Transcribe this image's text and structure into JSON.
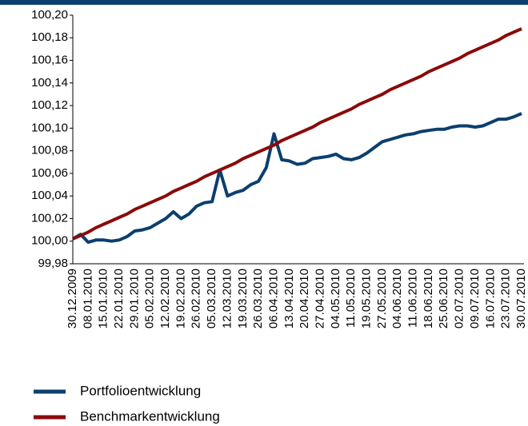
{
  "chart_data": {
    "type": "line",
    "categories": [
      "30.12.2009",
      null,
      "08.01.2010",
      null,
      "15.01.2010",
      null,
      "22.01.2010",
      null,
      "29.01.2010",
      null,
      "05.02.2010",
      null,
      "12.02.2010",
      null,
      "19.02.2010",
      null,
      "26.02.2010",
      null,
      "05.03.2010",
      null,
      "12.03.2010",
      null,
      "19.03.2010",
      null,
      "26.03.2010",
      null,
      "06.04.2010",
      null,
      "13.04.2010",
      null,
      "20.04.2010",
      null,
      "27.04.2010",
      null,
      "04.05.2010",
      null,
      "11.05.2010",
      null,
      "19.05.2010",
      null,
      "27.05.2010",
      null,
      "04.06.2010",
      null,
      "11.06.2010",
      null,
      "18.06.2010",
      null,
      "25.06.2010",
      null,
      "02.07.2010",
      null,
      "09.07.2010",
      null,
      "16.07.2010",
      null,
      "23.07.2010",
      null,
      "30.07.2010"
    ],
    "series": [
      {
        "name": "Portfolioentwicklung",
        "color": "#0b3f6e",
        "values": [
          100.002,
          100.006,
          99.999,
          100.001,
          100.001,
          100.0,
          100.001,
          100.004,
          100.009,
          100.01,
          100.012,
          100.016,
          100.02,
          100.026,
          100.02,
          100.024,
          100.031,
          100.034,
          100.035,
          100.063,
          100.04,
          100.043,
          100.045,
          100.05,
          100.053,
          100.065,
          100.095,
          100.072,
          100.071,
          100.068,
          100.069,
          100.073,
          100.074,
          100.075,
          100.077,
          100.073,
          100.072,
          100.074,
          100.078,
          100.083,
          100.088,
          100.09,
          100.092,
          100.094,
          100.095,
          100.097,
          100.098,
          100.099,
          100.099,
          100.101,
          100.102,
          100.102,
          100.101,
          100.102,
          100.105,
          100.108,
          100.108,
          100.11,
          100.113
        ]
      },
      {
        "name": "Benchmarkentwicklung",
        "color": "#8b0a0a",
        "values": [
          100.002,
          100.005,
          100.008,
          100.012,
          100.015,
          100.018,
          100.021,
          100.024,
          100.028,
          100.031,
          100.034,
          100.037,
          100.04,
          100.044,
          100.047,
          100.05,
          100.053,
          100.057,
          100.06,
          100.063,
          100.066,
          100.069,
          100.073,
          100.076,
          100.079,
          100.082,
          100.085,
          100.089,
          100.092,
          100.095,
          100.098,
          100.101,
          100.105,
          100.108,
          100.111,
          100.114,
          100.117,
          100.121,
          100.124,
          100.127,
          100.13,
          100.134,
          100.137,
          100.14,
          100.143,
          100.146,
          100.15,
          100.153,
          100.156,
          100.159,
          100.162,
          100.166,
          100.169,
          100.172,
          100.175,
          100.178,
          100.182,
          100.185,
          100.188
        ]
      }
    ],
    "ylim": [
      99.98,
      100.2
    ],
    "yticks": [
      {
        "value": 99.98,
        "label": "99,98"
      },
      {
        "value": 100,
        "label": "100,00"
      },
      {
        "value": 100.02,
        "label": "100,02"
      },
      {
        "value": 100.04,
        "label": "100,04"
      },
      {
        "value": 100.06,
        "label": "100,06"
      },
      {
        "value": 100.08,
        "label": "100,08"
      },
      {
        "value": 100.1,
        "label": "100,10"
      },
      {
        "value": 100.12,
        "label": "100,12"
      },
      {
        "value": 100.14,
        "label": "100,14"
      },
      {
        "value": 100.16,
        "label": "100,16"
      },
      {
        "value": 100.18,
        "label": "100,18"
      },
      {
        "value": 100.2,
        "label": "100,20"
      }
    ],
    "grid": false
  }
}
